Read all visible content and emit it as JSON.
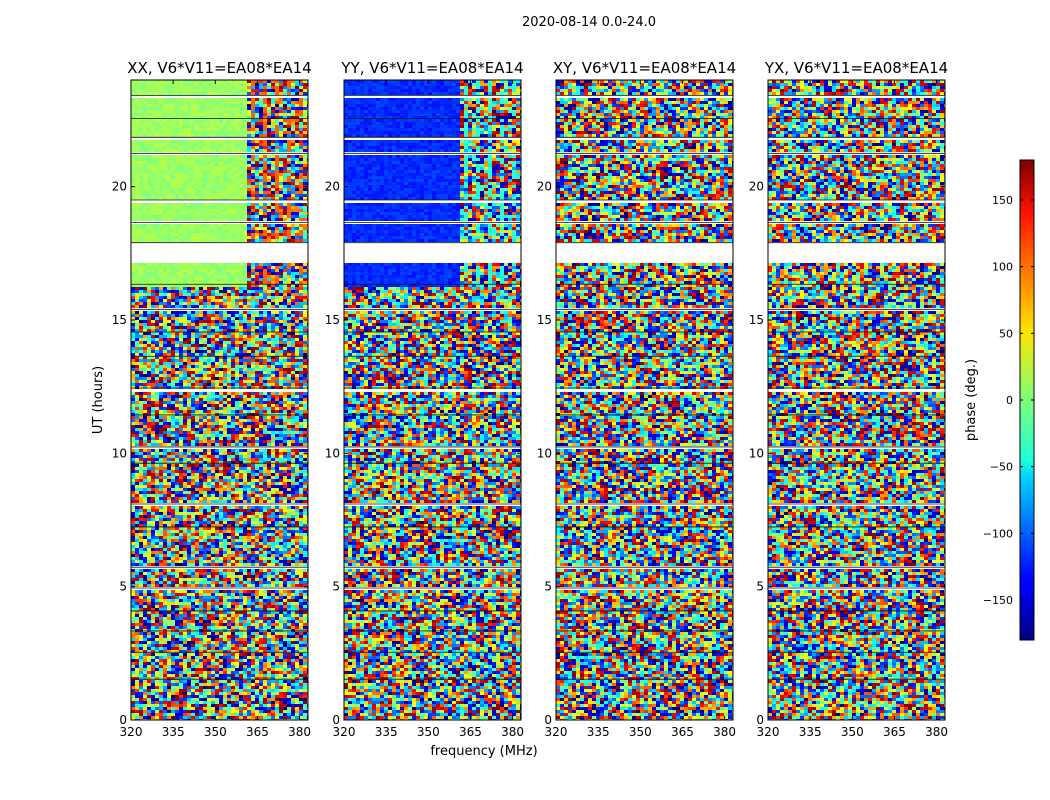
{
  "chart_data": {
    "type": "heatmap",
    "suptitle": "2020-08-14 0.0-24.0",
    "xlabel": "frequency (MHz)",
    "ylabel": "UT (hours)",
    "xlim": [
      320,
      383
    ],
    "ylim": [
      0,
      24
    ],
    "xticks": [
      320,
      335,
      350,
      365,
      380
    ],
    "yticks": [
      0,
      5,
      10,
      15,
      20
    ],
    "panels": [
      {
        "title": "XX, V6*V11=EA08*EA14",
        "calibrated_phase_deg": 10,
        "clean_band_mhz": [
          320,
          360
        ]
      },
      {
        "title": "YY, V6*V11=EA08*EA14",
        "calibrated_phase_deg": -120,
        "clean_band_mhz": [
          320,
          360
        ]
      },
      {
        "title": "XY, V6*V11=EA08*EA14",
        "calibrated_phase_deg": null,
        "clean_band_mhz": null
      },
      {
        "title": "YX, V6*V11=EA08*EA14",
        "calibrated_phase_deg": null,
        "clean_band_mhz": null
      }
    ],
    "colorbar": {
      "label": "phase (deg.)",
      "range": [
        -180,
        180
      ],
      "ticks": [
        150,
        100,
        50,
        0,
        -50,
        -100,
        -150
      ],
      "ticklabels": [
        "150",
        "100",
        "50",
        "0",
        "−50",
        "−100",
        "−150"
      ],
      "colormap": "jet"
    },
    "flagged_ut_intervals": [
      [
        17.1,
        17.9
      ],
      [
        19.35,
        19.5
      ],
      [
        12.3,
        12.45
      ],
      [
        8.0,
        8.1
      ],
      [
        4.85,
        4.95
      ],
      [
        23.35,
        23.42
      ],
      [
        22.5,
        22.56
      ],
      [
        21.8,
        21.85
      ],
      [
        21.2,
        21.25
      ],
      [
        18.6,
        18.66
      ],
      [
        16.3,
        16.34
      ],
      [
        15.35,
        15.4
      ],
      [
        14.5,
        14.55
      ],
      [
        13.6,
        13.64
      ],
      [
        11.4,
        11.44
      ],
      [
        10.2,
        10.24
      ],
      [
        9.6,
        9.63
      ],
      [
        7.2,
        7.24
      ],
      [
        5.7,
        5.73
      ],
      [
        4.05,
        4.09
      ],
      [
        3.3,
        3.34
      ],
      [
        2.5,
        2.54
      ],
      [
        1.5,
        1.53
      ]
    ]
  }
}
